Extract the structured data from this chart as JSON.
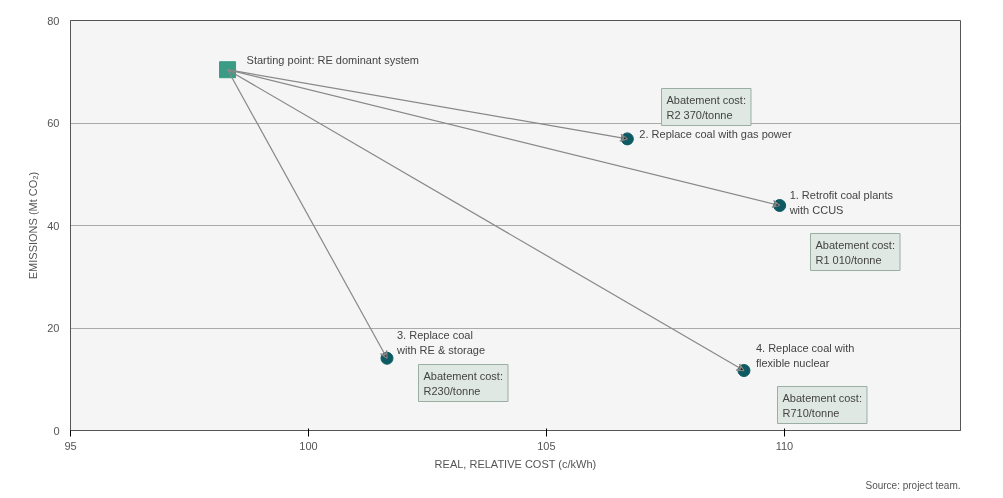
{
  "chart_data": {
    "type": "scatter",
    "xlabel": "REAL, RELATIVE COST (c/kWh)",
    "ylabel": "EMISSIONS (Mt CO₂)",
    "xlim": [
      95,
      113.7
    ],
    "xticks": [
      95,
      100,
      105,
      110
    ],
    "ylim": [
      0,
      80
    ],
    "yticks": [
      0,
      20,
      40,
      60,
      80
    ],
    "grid": "y",
    "series": [
      {
        "color": "#3a9c84",
        "marker": "square",
        "x": [
          98.3
        ],
        "values": [
          70.4
        ]
      },
      {
        "color": "#0d5a63",
        "marker": "circle",
        "x": [
          109.9,
          106.7,
          101.65,
          109.15
        ],
        "values": [
          43.9,
          56.9,
          14.1,
          11.7
        ]
      }
    ],
    "annotations": [
      {
        "text": "Starting point: RE dominant system",
        "x": 98.3,
        "y": 70.4
      },
      {
        "text": "2. Replace coal with gas power",
        "x": 106.7,
        "y": 56.9
      },
      {
        "text": "1. Retrofit coal plants\nwith CCUS",
        "x": 109.9,
        "y": 43.9
      },
      {
        "text": "3. Replace coal\nwith RE & storage",
        "x": 101.65,
        "y": 14.1
      },
      {
        "text": "4. Replace coal with\nflexible nuclear",
        "x": 109.15,
        "y": 11.7
      },
      "Abatement cost:\nR2 370/tonne",
      "Abatement cost:\nR1 010/tonne",
      "Abatement cost:\nR230/tonne",
      "Abatement cost:\nR710/tonne",
      "Source: project team."
    ]
  }
}
